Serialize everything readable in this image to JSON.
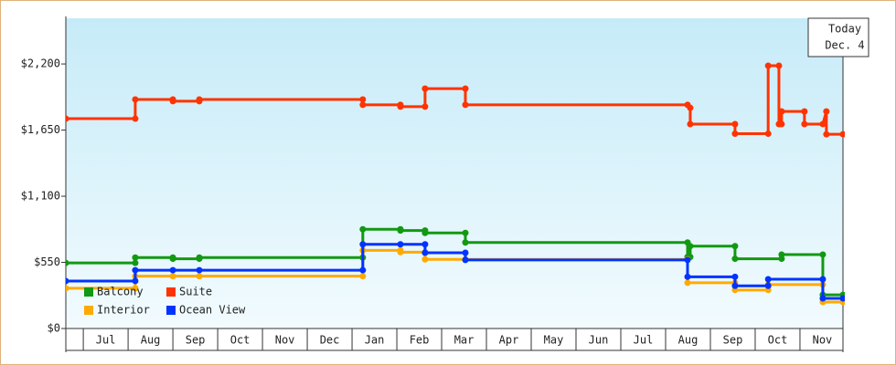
{
  "chart_data": {
    "type": "step-line",
    "yticks": [
      {
        "value": 0,
        "label": "$0"
      },
      {
        "value": 550,
        "label": "$550"
      },
      {
        "value": 1100,
        "label": "$1,100"
      },
      {
        "value": 1650,
        "label": "$1,650"
      },
      {
        "value": 2200,
        "label": "$2,200"
      }
    ],
    "ylim": [
      0,
      2580
    ],
    "xlim": [
      -0.39,
      16.96
    ],
    "categories": [
      "Jul",
      "Aug",
      "Sep",
      "Oct",
      "Nov",
      "Dec",
      "Jan",
      "Feb",
      "Mar",
      "Apr",
      "May",
      "Jun",
      "Jul",
      "Aug",
      "Sep",
      "Oct",
      "Nov"
    ],
    "grid": false,
    "legend": "bottom-left",
    "annotations": [
      "Today",
      "Dec. 4"
    ],
    "series": [
      {
        "name": "Balcony",
        "color": "#129912",
        "x": [
          -0.39,
          1.16,
          1.16,
          2.0,
          2.0,
          2.59,
          2.59,
          6.24,
          6.24,
          7.08,
          7.08,
          7.63,
          7.63,
          8.53,
          8.53,
          13.49,
          13.49,
          13.55,
          13.55,
          14.55,
          14.55,
          15.59,
          15.59,
          16.51,
          16.51,
          16.96
        ],
        "values": [
          545,
          545,
          590,
          590,
          580,
          580,
          590,
          590,
          825,
          825,
          815,
          815,
          795,
          795,
          715,
          715,
          595,
          595,
          685,
          685,
          580,
          580,
          615,
          615,
          280,
          280
        ]
      },
      {
        "name": "Suite",
        "color": "#ff3300",
        "x": [
          -0.39,
          1.16,
          1.16,
          2.0,
          2.0,
          2.59,
          2.59,
          6.24,
          6.24,
          7.08,
          7.08,
          7.63,
          7.63,
          8.53,
          8.53,
          13.49,
          13.55,
          13.55,
          14.55,
          14.55,
          15.29,
          15.29,
          15.53,
          15.53,
          15.59,
          15.59,
          16.1,
          16.1,
          16.51,
          16.59,
          16.59,
          16.96
        ],
        "values": [
          1745,
          1745,
          1905,
          1905,
          1890,
          1890,
          1905,
          1905,
          1860,
          1860,
          1845,
          1845,
          1995,
          1995,
          1860,
          1860,
          1835,
          1700,
          1700,
          1620,
          1620,
          2185,
          2185,
          1700,
          1700,
          1805,
          1805,
          1700,
          1700,
          1805,
          1615,
          1615
        ]
      },
      {
        "name": "Interior",
        "color": "#ffaa00",
        "x": [
          -0.39,
          1.16,
          1.16,
          2.0,
          2.59,
          6.24,
          6.24,
          7.08,
          7.08,
          7.63,
          7.63,
          8.53,
          13.49,
          13.49,
          14.55,
          14.55,
          15.29,
          15.29,
          16.51,
          16.51,
          16.96
        ],
        "values": [
          335,
          335,
          435,
          435,
          435,
          435,
          650,
          650,
          635,
          635,
          575,
          575,
          575,
          380,
          380,
          320,
          320,
          365,
          365,
          220,
          220
        ]
      },
      {
        "name": "Ocean View",
        "color": "#0033ff",
        "x": [
          -0.39,
          1.16,
          1.16,
          2.0,
          2.59,
          6.24,
          6.24,
          7.08,
          7.63,
          7.63,
          8.53,
          8.53,
          13.49,
          13.49,
          14.55,
          14.55,
          15.29,
          15.29,
          16.51,
          16.51,
          16.96
        ],
        "values": [
          395,
          395,
          485,
          485,
          485,
          485,
          700,
          700,
          700,
          630,
          630,
          570,
          570,
          430,
          430,
          355,
          355,
          410,
          410,
          250,
          250
        ]
      }
    ]
  }
}
